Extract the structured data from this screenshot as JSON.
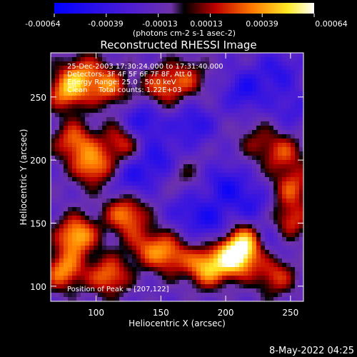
{
  "chart_data": {
    "type": "heatmap",
    "title": "Reconstructed RHESSI Image",
    "xlabel": "Heliocentric X (arcsec)",
    "ylabel": "Heliocentric Y (arcsec)",
    "xlim": [
      65,
      260
    ],
    "ylim": [
      88,
      285
    ],
    "x_ticks": [
      100,
      150,
      200,
      250
    ],
    "y_ticks": [
      100,
      150,
      200,
      250
    ],
    "annotations": [
      "25-Dec-2003 17:30:24.000 to 17:31:40.000",
      "Detectors: 3F 4F 5F 6F 7F 8F, Att 0",
      "Energy Range: 25.0 - 50.0 keV",
      "Clean     Total counts: 1.22E+03"
    ],
    "peak_label": "Position of Peak = [207,122]",
    "peak": [
      207,
      122
    ],
    "colorbar": {
      "min": -0.00064,
      "max": 0.00064,
      "ticks": [
        "-0.00064",
        "-0.00039",
        "-0.00013",
        "0.00013",
        "0.00039",
        "0.00064"
      ],
      "unit_label": "(photons cm-2 s-1 asec-2)",
      "colors": [
        "#0000ff",
        "#5a22c8",
        "#7038b0",
        "#000000",
        "#c80000",
        "#ff8800",
        "#ffff00",
        "#ffffff"
      ]
    },
    "sources": [
      {
        "x": 207,
        "y": 122,
        "v": 1.0
      },
      {
        "x": 185,
        "y": 115,
        "v": 0.9
      },
      {
        "x": 215,
        "y": 135,
        "v": 0.85
      },
      {
        "x": 85,
        "y": 140,
        "v": 0.95
      },
      {
        "x": 75,
        "y": 112,
        "v": 0.8
      },
      {
        "x": 123,
        "y": 157,
        "v": 0.8
      },
      {
        "x": 110,
        "y": 108,
        "v": 0.75
      },
      {
        "x": 98,
        "y": 195,
        "v": 0.8
      },
      {
        "x": 83,
        "y": 215,
        "v": 0.7
      },
      {
        "x": 120,
        "y": 215,
        "v": 0.6
      },
      {
        "x": 78,
        "y": 255,
        "v": 0.85
      },
      {
        "x": 110,
        "y": 258,
        "v": 0.7
      },
      {
        "x": 90,
        "y": 270,
        "v": 0.55
      },
      {
        "x": 150,
        "y": 258,
        "v": 0.6
      },
      {
        "x": 170,
        "y": 265,
        "v": 0.5
      },
      {
        "x": 248,
        "y": 150,
        "v": 0.7
      },
      {
        "x": 252,
        "y": 178,
        "v": 0.6
      },
      {
        "x": 245,
        "y": 205,
        "v": 0.55
      },
      {
        "x": 238,
        "y": 108,
        "v": 0.6
      },
      {
        "x": 156,
        "y": 125,
        "v": 0.7
      },
      {
        "x": 138,
        "y": 132,
        "v": 0.5
      },
      {
        "x": 165,
        "y": 190,
        "v": 0.3
      },
      {
        "x": 225,
        "y": 215,
        "v": 0.35
      },
      {
        "x": 135,
        "y": 230,
        "v": -0.55
      },
      {
        "x": 150,
        "y": 200,
        "v": -0.5
      },
      {
        "x": 200,
        "y": 180,
        "v": -0.5
      },
      {
        "x": 175,
        "y": 228,
        "v": -0.45
      },
      {
        "x": 215,
        "y": 255,
        "v": -0.5
      },
      {
        "x": 240,
        "y": 270,
        "v": -0.4
      },
      {
        "x": 190,
        "y": 150,
        "v": -0.45
      },
      {
        "x": 128,
        "y": 185,
        "v": -0.45
      },
      {
        "x": 220,
        "y": 165,
        "v": -0.4
      },
      {
        "x": 236,
        "y": 140,
        "v": -0.45
      },
      {
        "x": 170,
        "y": 160,
        "v": -0.35
      },
      {
        "x": 250,
        "y": 240,
        "v": -0.3
      }
    ]
  },
  "footer": {
    "date": "8-May-2022 04:25"
  }
}
